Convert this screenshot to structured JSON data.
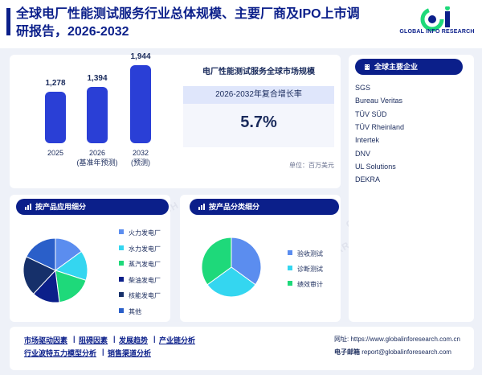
{
  "header": {
    "title": "全球电厂性能测试服务行业总体规模、主要厂商及IPO上市调研报告，2026-2032",
    "logo_text": "GLOBAL INFO RESEARCH",
    "logo_mark": "Gi"
  },
  "watermark_text": "GLOBAL INFO RESEARCH",
  "market": {
    "title": "电厂性能测试服务全球市场规模",
    "cagr_label": "2026-2032年复合增长率",
    "cagr_value": "5.7%",
    "unit": "单位：百万美元",
    "bars": [
      {
        "value": "1,278",
        "label": "2025",
        "sublabel": ""
      },
      {
        "value": "1,394",
        "label": "2026",
        "sublabel": "(基准年预测)"
      },
      {
        "value": "1,944",
        "label": "2032",
        "sublabel": "(预测)"
      }
    ]
  },
  "chart_data": [
    {
      "type": "bar",
      "title": "",
      "categories": [
        "2025",
        "2026",
        "2032"
      ],
      "values": [
        1278,
        1394,
        1944
      ]
    },
    {
      "type": "pie",
      "title": "按产品应用细分",
      "categories": [
        "火力发电厂",
        "水力发电厂",
        "蒸汽发电厂",
        "柴油发电厂",
        "核能发电厂",
        "其他"
      ],
      "values": [
        15,
        15,
        18,
        14,
        20,
        18
      ]
    },
    {
      "type": "pie",
      "title": "按产品分类细分",
      "categories": [
        "验收测试",
        "诊断测试",
        "绩效审计"
      ],
      "values": [
        35,
        30,
        35
      ]
    }
  ],
  "companies": {
    "title": "全球主要企业",
    "items": [
      "SGS",
      "Bureau Veritas",
      "TÜV SÜD",
      "TÜV Rheinland",
      "Intertek",
      "DNV",
      "UL Solutions",
      "DEKRA"
    ]
  },
  "app_panel": {
    "title": "按产品应用细分",
    "legend": [
      {
        "label": "火力发电厂",
        "color": "#5b8def"
      },
      {
        "label": "水力发电厂",
        "color": "#34d6f0"
      },
      {
        "label": "蒸汽发电厂",
        "color": "#1ed97a"
      },
      {
        "label": "柴油发电厂",
        "color": "#0b1f8a"
      },
      {
        "label": "核能发电厂",
        "color": "#16306a"
      },
      {
        "label": "其他",
        "color": "#2a5fc9"
      }
    ]
  },
  "prod_panel": {
    "title": "按产品分类细分",
    "legend": [
      {
        "label": "验收测试",
        "color": "#5b8def"
      },
      {
        "label": "诊断测试",
        "color": "#34d6f0"
      },
      {
        "label": "绩效审计",
        "color": "#1ed97a"
      }
    ]
  },
  "footer": {
    "links_row1": [
      "市场驱动因素",
      "阻碍因素",
      "发展趋势",
      "产业链分析"
    ],
    "links_row2": [
      "行业波特五力模型分析",
      "销售渠道分析"
    ],
    "website": "网址: https://www.globalinforesearch.com.cn",
    "email_label": "电子邮箱",
    "email": "report@globalinforesearch.com"
  }
}
